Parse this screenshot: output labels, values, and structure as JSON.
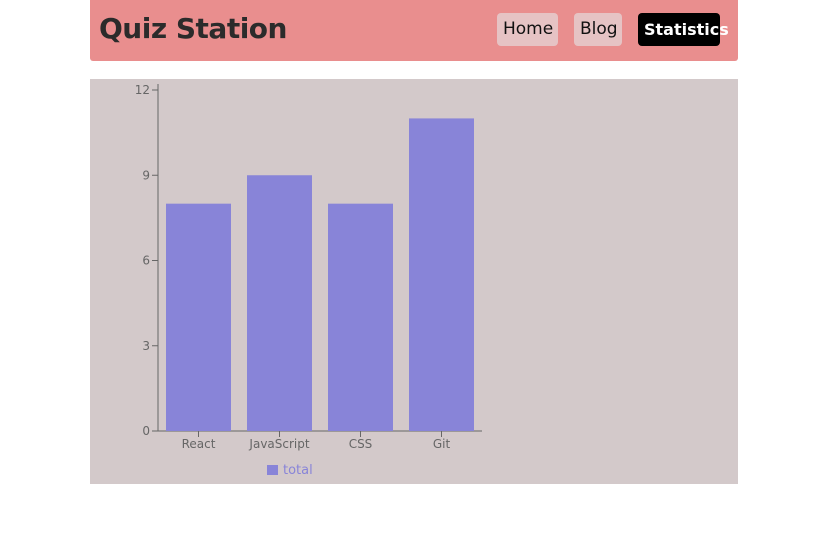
{
  "navbar": {
    "brand": "Quiz Station",
    "links": [
      {
        "label": "Home"
      },
      {
        "label": "Blog"
      },
      {
        "label": "Statistics"
      }
    ],
    "active": "Statistics"
  },
  "colors": {
    "navbar_bg": "#e98e8e",
    "nav_button_bg": "#e6c3c4",
    "active_button_bg": "#000000",
    "chart_bg": "#d3c9ca",
    "bar_fill": "#8884d8"
  },
  "chart_data": {
    "type": "bar",
    "categories": [
      "React",
      "JavaScript",
      "CSS",
      "Git"
    ],
    "series": [
      {
        "name": "total",
        "values": [
          8,
          9,
          8,
          11
        ]
      }
    ],
    "ylim": [
      0,
      12
    ],
    "yticks": [
      0,
      3,
      6,
      9,
      12
    ],
    "grid": false,
    "legend": "bottom"
  }
}
